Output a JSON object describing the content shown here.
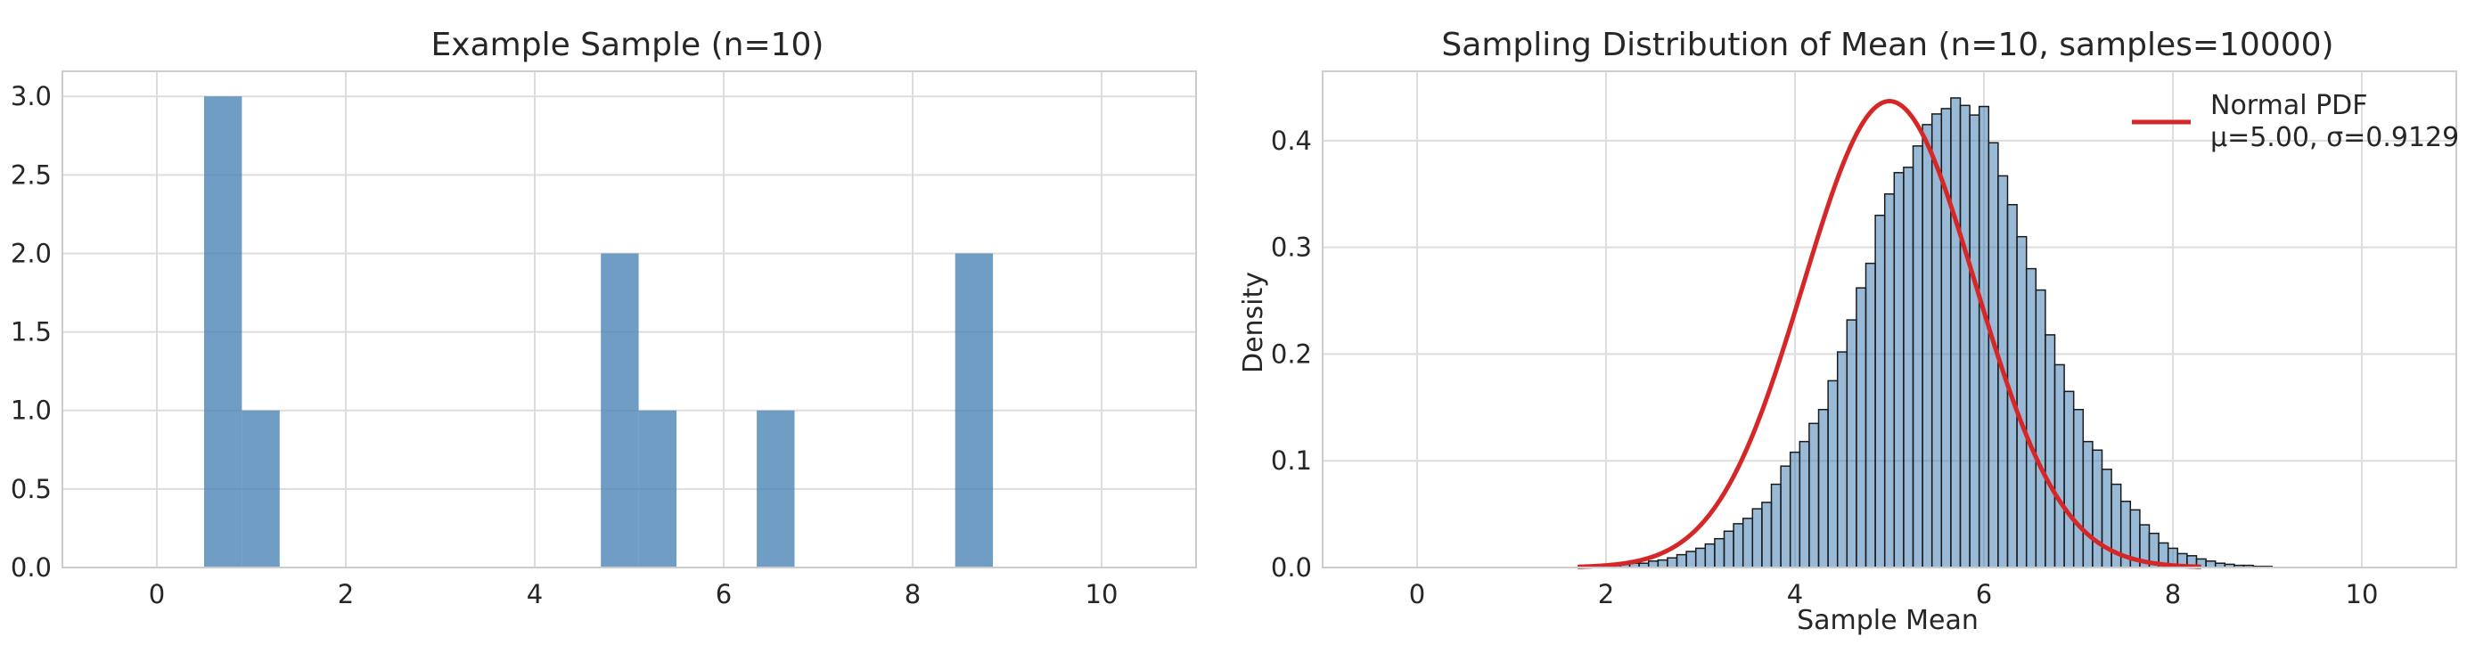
{
  "chart_data": [
    {
      "type": "bar",
      "title": "Example Sample (n=10)",
      "xlabel": "",
      "ylabel": "",
      "xlim": [
        -1,
        11
      ],
      "ylim": [
        0,
        3.16
      ],
      "xticks": [
        0,
        2,
        4,
        6,
        8,
        10
      ],
      "yticks": [
        0.0,
        0.5,
        1.0,
        1.5,
        2.0,
        2.5,
        3.0
      ],
      "grid": true,
      "bar_color": "#4682b4",
      "bins": [
        {
          "x0": 0.5,
          "x1": 0.9,
          "count": 3
        },
        {
          "x0": 0.9,
          "x1": 1.3,
          "count": 1
        },
        {
          "x0": 4.7,
          "x1": 5.1,
          "count": 2
        },
        {
          "x0": 5.1,
          "x1": 5.5,
          "count": 1
        },
        {
          "x0": 6.35,
          "x1": 6.75,
          "count": 1
        },
        {
          "x0": 8.45,
          "x1": 8.85,
          "count": 2
        }
      ]
    },
    {
      "type": "bar",
      "title": "Sampling Distribution of Mean (n=10, samples=10000)",
      "xlabel": "Sample Mean",
      "ylabel": "Density",
      "xlim": [
        -1,
        11
      ],
      "ylim": [
        0,
        0.465
      ],
      "xticks": [
        0,
        2,
        4,
        6,
        8,
        10
      ],
      "yticks": [
        0.0,
        0.1,
        0.2,
        0.3,
        0.4
      ],
      "grid": true,
      "bar_color": "#4682b4",
      "line_color": "#d62728",
      "legend": {
        "position": "top-right",
        "entries": [
          "Normal PDF",
          "μ=5.00, σ=0.9129"
        ]
      },
      "histogram": {
        "bin_start": 1.85,
        "bin_width": 0.1,
        "density": [
          0.001,
          0.002,
          0.002,
          0.003,
          0.004,
          0.004,
          0.006,
          0.007,
          0.009,
          0.012,
          0.015,
          0.018,
          0.022,
          0.027,
          0.034,
          0.041,
          0.046,
          0.055,
          0.061,
          0.078,
          0.095,
          0.108,
          0.118,
          0.135,
          0.148,
          0.175,
          0.202,
          0.232,
          0.262,
          0.285,
          0.33,
          0.35,
          0.37,
          0.375,
          0.395,
          0.415,
          0.425,
          0.43,
          0.44,
          0.433,
          0.424,
          0.432,
          0.398,
          0.367,
          0.34,
          0.31,
          0.28,
          0.26,
          0.218,
          0.19,
          0.165,
          0.148,
          0.118,
          0.11,
          0.092,
          0.078,
          0.062,
          0.054,
          0.04,
          0.032,
          0.023,
          0.018,
          0.013,
          0.011,
          0.008,
          0.006,
          0.004,
          0.003,
          0.002,
          0.002,
          0.001,
          0.001
        ]
      },
      "normal_pdf": {
        "mu": 5.0,
        "sigma": 0.9129,
        "x_range": [
          1.7,
          8.3
        ]
      }
    }
  ]
}
